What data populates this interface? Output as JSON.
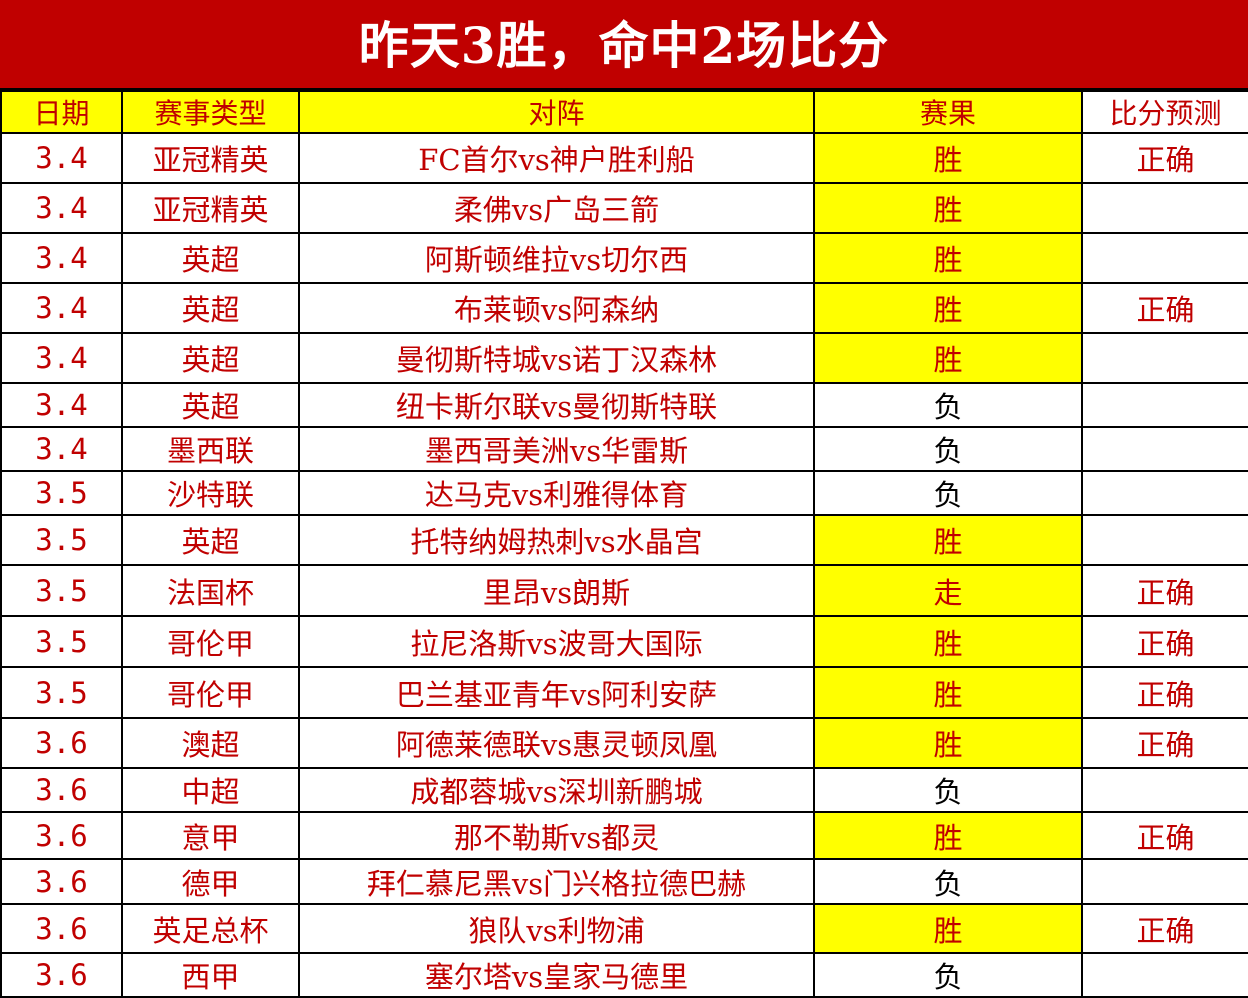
{
  "title": "昨天3胜，命中2场比分",
  "columns": [
    "日期",
    "赛事类型",
    "对阵",
    "赛果",
    "比分预测"
  ],
  "colors": {
    "title_bg": "#c00000",
    "highlight": "#ffff00",
    "text": "#c00000",
    "lose_text": "#000000"
  },
  "rows": [
    {
      "date": "3.4",
      "league": "亚冠精英",
      "match": "FC首尔vs神户胜利船",
      "result": "胜",
      "score": "正确"
    },
    {
      "date": "3.4",
      "league": "亚冠精英",
      "match": "柔佛vs广岛三箭",
      "result": "胜",
      "score": ""
    },
    {
      "date": "3.4",
      "league": "英超",
      "match": "阿斯顿维拉vs切尔西",
      "result": "胜",
      "score": ""
    },
    {
      "date": "3.4",
      "league": "英超",
      "match": "布莱顿vs阿森纳",
      "result": "胜",
      "score": "正确"
    },
    {
      "date": "3.4",
      "league": "英超",
      "match": "曼彻斯特城vs诺丁汉森林",
      "result": "胜",
      "score": ""
    },
    {
      "date": "3.4",
      "league": "英超",
      "match": "纽卡斯尔联vs曼彻斯特联",
      "result": "负",
      "score": ""
    },
    {
      "date": "3.4",
      "league": "墨西联",
      "match": "墨西哥美洲vs华雷斯",
      "result": "负",
      "score": ""
    },
    {
      "date": "3.5",
      "league": "沙特联",
      "match": "达马克vs利雅得体育",
      "result": "负",
      "score": ""
    },
    {
      "date": "3.5",
      "league": "英超",
      "match": "托特纳姆热刺vs水晶宫",
      "result": "胜",
      "score": ""
    },
    {
      "date": "3.5",
      "league": "法国杯",
      "match": "里昂vs朗斯",
      "result": "走",
      "score": "正确"
    },
    {
      "date": "3.5",
      "league": "哥伦甲",
      "match": "拉尼洛斯vs波哥大国际",
      "result": "胜",
      "score": "正确"
    },
    {
      "date": "3.5",
      "league": "哥伦甲",
      "match": "巴兰基亚青年vs阿利安萨",
      "result": "胜",
      "score": "正确"
    },
    {
      "date": "3.6",
      "league": "澳超",
      "match": "阿德莱德联vs惠灵顿凤凰",
      "result": "胜",
      "score": "正确"
    },
    {
      "date": "3.6",
      "league": "中超",
      "match": "成都蓉城vs深圳新鹏城",
      "result": "负",
      "score": ""
    },
    {
      "date": "3.6",
      "league": "意甲",
      "match": "那不勒斯vs都灵",
      "result": "胜",
      "score": "正确"
    },
    {
      "date": "3.6",
      "league": "德甲",
      "match": "拜仁慕尼黑vs门兴格拉德巴赫",
      "result": "负",
      "score": ""
    },
    {
      "date": "3.6",
      "league": "英足总杯",
      "match": "狼队vs利物浦",
      "result": "胜",
      "score": "正确"
    },
    {
      "date": "3.6",
      "league": "西甲",
      "match": "塞尔塔vs皇家马德里",
      "result": "负",
      "score": ""
    }
  ]
}
